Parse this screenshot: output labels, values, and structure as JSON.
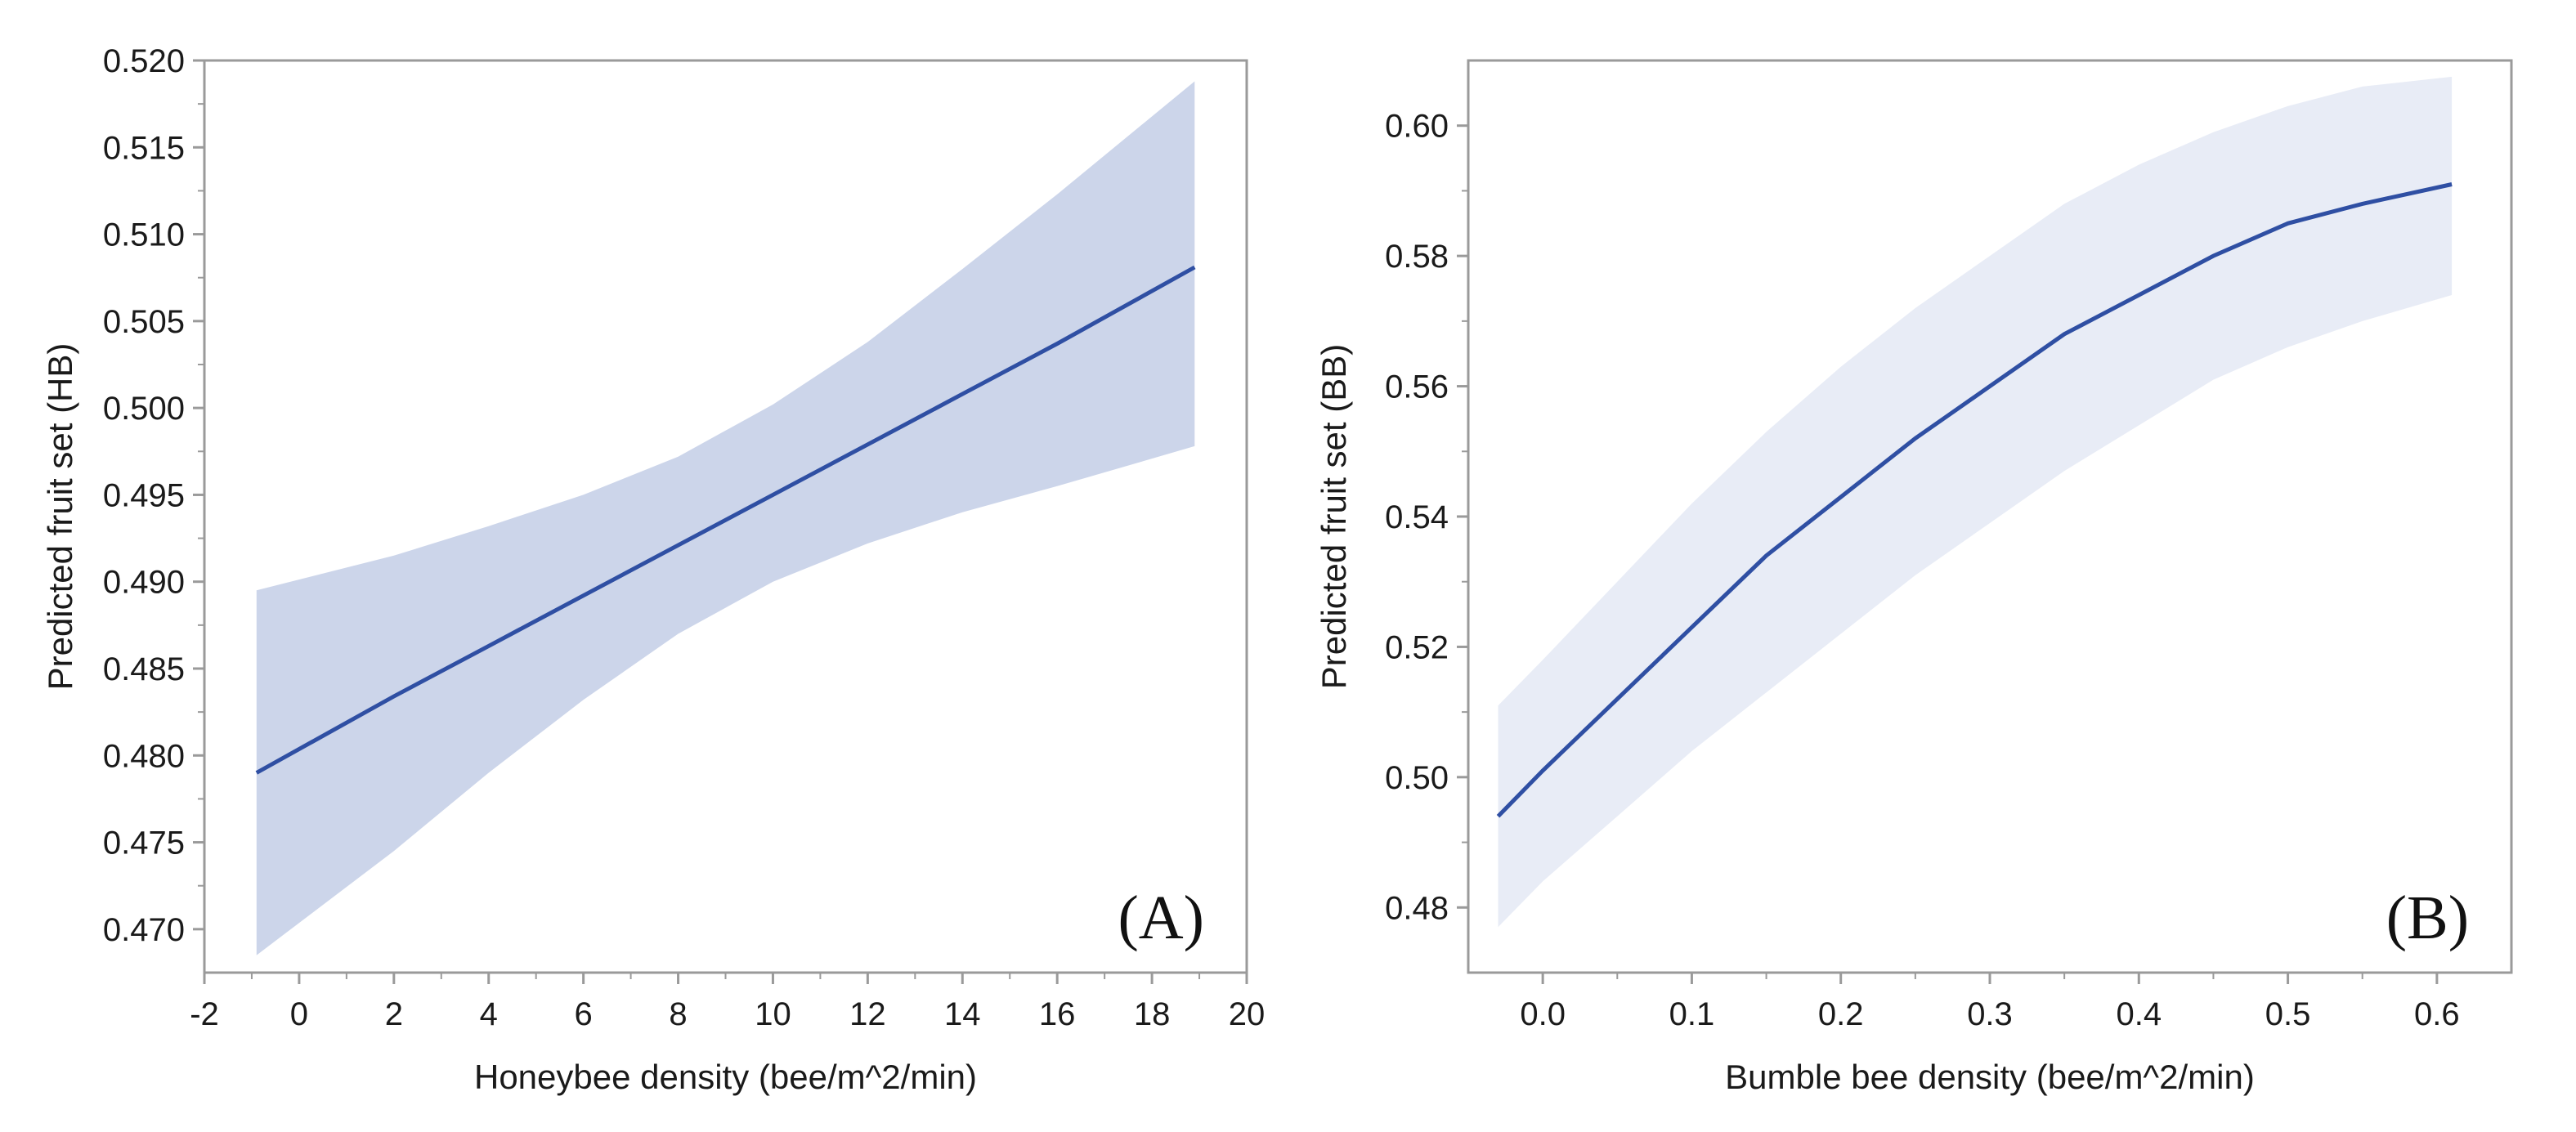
{
  "chart_data": [
    {
      "type": "line",
      "panel_label": "(A)",
      "xlabel": "Honeybee density (bee/m^2/min)",
      "ylabel": "Predicted fruit set (HB)",
      "xlim": [
        -2,
        20
      ],
      "ylim": [
        0.4675,
        0.52
      ],
      "x_ticks": [
        -2,
        0,
        2,
        4,
        6,
        8,
        10,
        12,
        14,
        16,
        18,
        20
      ],
      "x_tick_labels": [
        "-2",
        "0",
        "2",
        "4",
        "6",
        "8",
        "10",
        "12",
        "14",
        "16",
        "18",
        "20"
      ],
      "y_ticks": [
        0.47,
        0.475,
        0.48,
        0.485,
        0.49,
        0.495,
        0.5,
        0.505,
        0.51,
        0.515,
        0.52
      ],
      "y_tick_labels": [
        "0.470",
        "0.475",
        "0.480",
        "0.485",
        "0.490",
        "0.495",
        "0.500",
        "0.505",
        "0.510",
        "0.515",
        "0.520"
      ],
      "series": [
        {
          "x": [
            -0.9,
            2,
            4,
            6,
            8,
            10,
            12,
            14,
            16,
            18.9
          ],
          "y": [
            0.479,
            0.4834,
            0.4863,
            0.4892,
            0.4921,
            0.495,
            0.4979,
            0.5008,
            0.5037,
            0.5081
          ],
          "ci_lower": [
            0.4685,
            0.4745,
            0.479,
            0.4832,
            0.487,
            0.49,
            0.4922,
            0.494,
            0.4955,
            0.4978
          ],
          "ci_upper": [
            0.4895,
            0.4915,
            0.4932,
            0.495,
            0.4972,
            0.5002,
            0.5038,
            0.508,
            0.5123,
            0.5188
          ]
        }
      ],
      "colors": {
        "line": "#2f4fa3",
        "band": "#ccd5ea"
      },
      "grid": false
    },
    {
      "type": "line",
      "panel_label": "(B)",
      "xlabel": "Bumble bee density (bee/m^2/min)",
      "ylabel": "Predicted fruit set (BB)",
      "xlim": [
        -0.05,
        0.65
      ],
      "ylim": [
        0.47,
        0.61
      ],
      "x_ticks": [
        0.0,
        0.1,
        0.2,
        0.3,
        0.4,
        0.5,
        0.6
      ],
      "x_tick_labels": [
        "0.0",
        "0.1",
        "0.2",
        "0.3",
        "0.4",
        "0.5",
        "0.6"
      ],
      "y_ticks": [
        0.48,
        0.5,
        0.52,
        0.54,
        0.56,
        0.58,
        0.6
      ],
      "y_tick_labels": [
        "0.48",
        "0.50",
        "0.52",
        "0.54",
        "0.56",
        "0.58",
        "0.60"
      ],
      "series": [
        {
          "x": [
            -0.03,
            0.0,
            0.05,
            0.1,
            0.15,
            0.2,
            0.25,
            0.3,
            0.35,
            0.4,
            0.45,
            0.5,
            0.55,
            0.61
          ],
          "y": [
            0.494,
            0.501,
            0.512,
            0.523,
            0.534,
            0.543,
            0.552,
            0.56,
            0.568,
            0.574,
            0.58,
            0.585,
            0.588,
            0.591
          ],
          "ci_lower": [
            0.477,
            0.484,
            0.494,
            0.504,
            0.513,
            0.522,
            0.531,
            0.539,
            0.547,
            0.554,
            0.561,
            0.566,
            0.57,
            0.574
          ],
          "ci_upper": [
            0.511,
            0.518,
            0.53,
            0.542,
            0.553,
            0.563,
            0.572,
            0.58,
            0.588,
            0.594,
            0.599,
            0.603,
            0.606,
            0.6075
          ]
        }
      ],
      "colors": {
        "line": "#2f4fa3",
        "band": "#e8ecf6"
      },
      "grid": false
    }
  ]
}
